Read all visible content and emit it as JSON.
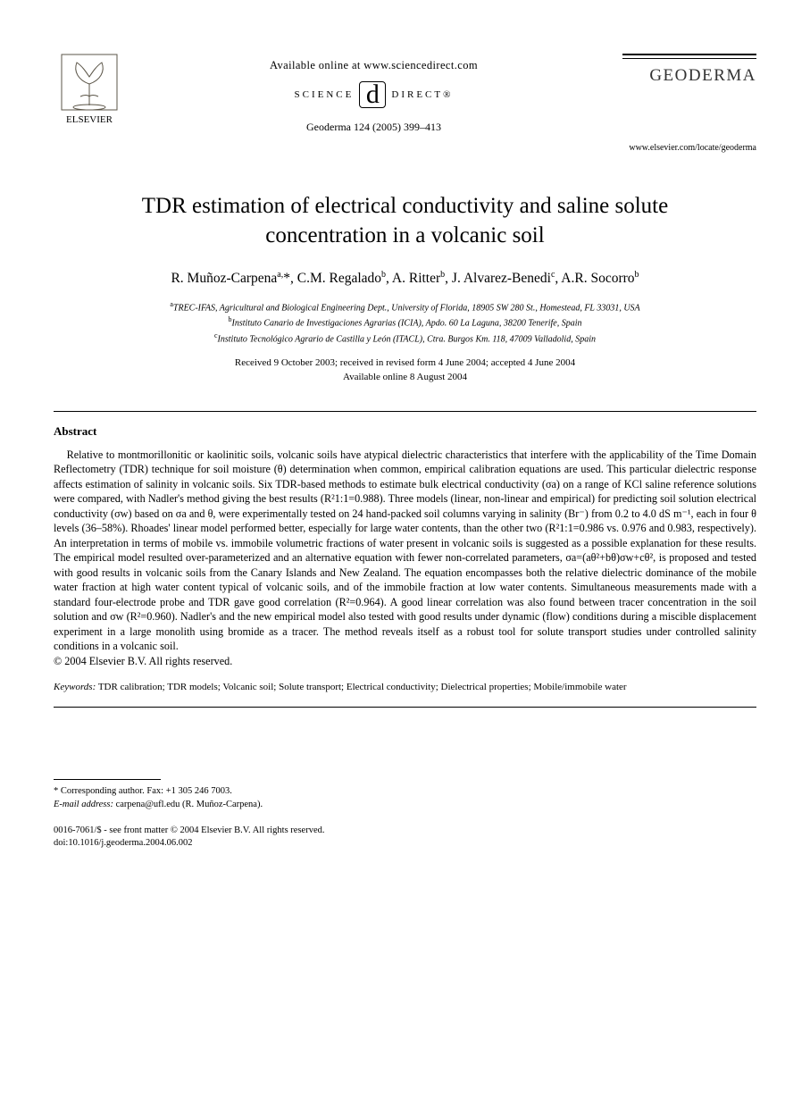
{
  "header": {
    "available_text": "Available online at www.sciencedirect.com",
    "sd_left": "SCIENCE",
    "sd_d": "d",
    "sd_right": "DIRECT®",
    "journal_ref": "Geoderma 124 (2005) 399–413",
    "publisher": "ELSEVIER",
    "journal_name": "GEODERMA",
    "locate_url": "www.elsevier.com/locate/geoderma"
  },
  "title": "TDR estimation of electrical conductivity and saline solute concentration in a volcanic soil",
  "authors_html": "R. Muñoz-Carpena<sup>a,</sup>*, C.M. Regalado<sup>b</sup>, A. Ritter<sup>b</sup>, J. Alvarez-Benedi<sup>c</sup>, A.R. Socorro<sup>b</sup>",
  "affiliations": {
    "a": "TREC-IFAS, Agricultural and Biological Engineering Dept., University of Florida, 18905 SW 280 St., Homestead, FL 33031, USA",
    "b": "Instituto Canario de Investigaciones Agrarias (ICIA), Apdo. 60 La Laguna, 38200 Tenerife, Spain",
    "c": "Instituto Tecnológico Agrario de Castilla y León (ITACL), Ctra. Burgos Km. 118, 47009 Valladolid, Spain"
  },
  "dates": {
    "line1": "Received 9 October 2003; received in revised form 4 June 2004; accepted 4 June 2004",
    "line2": "Available online 8 August 2004"
  },
  "abstract_label": "Abstract",
  "abstract_text": "Relative to montmorillonitic or kaolinitic soils, volcanic soils have atypical dielectric characteristics that interfere with the applicability of the Time Domain Reflectometry (TDR) technique for soil moisture (θ) determination when common, empirical calibration equations are used. This particular dielectric response affects estimation of salinity in volcanic soils. Six TDR-based methods to estimate bulk electrical conductivity (σa) on a range of KCl saline reference solutions were compared, with Nadler's method giving the best results (R²1:1=0.988). Three models (linear, non-linear and empirical) for predicting soil solution electrical conductivity (σw) based on σa and θ, were experimentally tested on 24 hand-packed soil columns varying in salinity (Br⁻) from 0.2 to 4.0 dS m⁻¹, each in four θ levels (36–58%). Rhoades' linear model performed better, especially for large water contents, than the other two (R²1:1=0.986 vs. 0.976 and 0.983, respectively). An interpretation in terms of mobile vs. immobile volumetric fractions of water present in volcanic soils is suggested as a possible explanation for these results. The empirical model resulted over-parameterized and an alternative equation with fewer non-correlated parameters, σa=(aθ²+bθ)σw+cθ², is proposed and tested with good results in volcanic soils from the Canary Islands and New Zealand. The equation encompasses both the relative dielectric dominance of the mobile water fraction at high water content typical of volcanic soils, and of the immobile fraction at low water contents. Simultaneous measurements made with a standard four-electrode probe and TDR gave good correlation (R²=0.964). A good linear correlation was also found between tracer concentration in the soil solution and σw (R²=0.960). Nadler's and the new empirical model also tested with good results under dynamic (flow) conditions during a miscible displacement experiment in a large monolith using bromide as a tracer. The method reveals itself as a robust tool for solute transport studies under controlled salinity conditions in a volcanic soil.",
  "copyright": "© 2004 Elsevier B.V. All rights reserved.",
  "keywords_label": "Keywords:",
  "keywords_text": "TDR calibration; TDR models; Volcanic soil; Solute transport; Electrical conductivity; Dielectrical properties; Mobile/immobile water",
  "footnotes": {
    "corr_label": "* Corresponding author. Fax: +1 305 246 7003.",
    "email_label": "E-mail address:",
    "email_value": "carpena@ufl.edu (R. Muñoz-Carpena)."
  },
  "bottom": {
    "issn_line": "0016-7061/$ - see front matter © 2004 Elsevier B.V. All rights reserved.",
    "doi_line": "doi:10.1016/j.geoderma.2004.06.002"
  },
  "colors": {
    "text": "#000000",
    "background": "#ffffff",
    "journal_name": "#333333",
    "tree_stroke": "#5b5548"
  }
}
